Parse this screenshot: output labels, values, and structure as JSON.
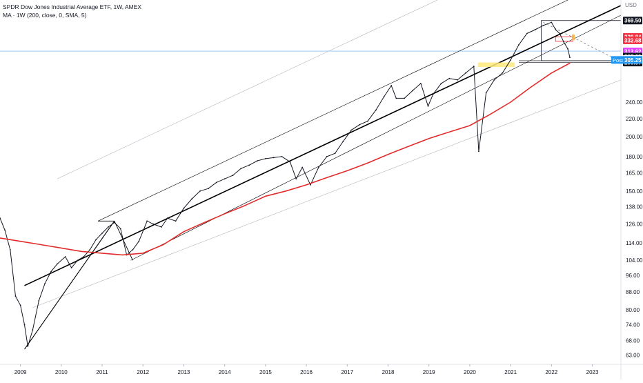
{
  "legend": {
    "symbol_line": "SPDR Dow Jones Industrial Average ETF, 1W, AMEX",
    "indicator_line": "MA · 1W (200, close, 0, SMA, 5)"
  },
  "chart_data": {
    "type": "line",
    "xlim": [
      2008.5,
      2023.7
    ],
    "ylim": [
      60,
      400
    ],
    "log_scale": true,
    "grid": false,
    "price_axis_unit": "USD",
    "y_ticks": [
      63,
      68,
      74,
      80,
      88,
      96,
      104,
      114,
      126,
      138,
      150,
      165,
      180,
      200,
      220,
      240,
      305.25,
      369.5
    ],
    "y_tick_labels": [
      "63.00",
      "68.00",
      "74.00",
      "80.00",
      "88.00",
      "96.00",
      "104.00",
      "114.00",
      "126.00",
      "138.00",
      "150.00",
      "165.00",
      "180.00",
      "200.00",
      "220.00",
      "240.00",
      "305.25",
      "369.50"
    ],
    "x_ticks": [
      2009.0,
      2010.0,
      2011.0,
      2012.0,
      2013.0,
      2014.0,
      2015.0,
      2016.0,
      2017.0,
      2018.0,
      2019.0,
      2020.0,
      2021.0,
      2022.0,
      2023.0
    ],
    "x_tick_labels": [
      "2009",
      "2010",
      "2011",
      "2012",
      "2013",
      "2014",
      "2015",
      "2016",
      "2017",
      "2018",
      "2019",
      "2020",
      "2021",
      "2022",
      "2023"
    ],
    "series": [
      {
        "color": "#131722",
        "x": [
          2008.5,
          2008.62,
          2008.75,
          2008.88,
          2009.0,
          2009.1,
          2009.18,
          2009.3,
          2009.45,
          2009.6,
          2009.75,
          2009.9,
          2010.1,
          2010.25,
          2010.4,
          2010.55,
          2010.7,
          2010.85,
          2011.0,
          2011.15,
          2011.3,
          2011.45,
          2011.6,
          2011.75,
          2011.9,
          2012.1,
          2012.25,
          2012.45,
          2012.6,
          2012.8,
          2013.0,
          2013.2,
          2013.4,
          2013.6,
          2013.8,
          2014.0,
          2014.2,
          2014.4,
          2014.6,
          2014.8,
          2015.0,
          2015.2,
          2015.4,
          2015.6,
          2015.75,
          2015.9,
          2016.1,
          2016.3,
          2016.5,
          2016.7,
          2016.9,
          2017.1,
          2017.3,
          2017.5,
          2017.7,
          2017.9,
          2018.08,
          2018.2,
          2018.4,
          2018.6,
          2018.8,
          2018.98,
          2019.1,
          2019.3,
          2019.5,
          2019.7,
          2019.9,
          2020.1,
          2020.22,
          2020.4,
          2020.6,
          2020.8,
          2021.0,
          2021.2,
          2021.4,
          2021.6,
          2021.8,
          2022.0,
          2022.1,
          2022.2,
          2022.3,
          2022.4,
          2022.45
        ],
        "y": [
          130,
          122,
          110,
          86,
          82,
          74,
          66,
          72,
          84,
          92,
          98,
          102,
          106,
          100,
          104,
          106,
          110,
          116,
          120,
          124,
          127,
          123,
          107,
          110,
          115,
          128,
          126,
          124,
          130,
          128,
          137,
          144,
          150,
          152,
          157,
          160,
          163,
          169,
          172,
          176,
          178,
          179,
          180,
          175,
          160,
          170,
          155,
          170,
          180,
          183,
          195,
          207,
          213,
          217,
          230,
          247,
          262,
          245,
          245,
          255,
          265,
          235,
          250,
          265,
          272,
          270,
          280,
          290,
          185,
          252,
          270,
          280,
          300,
          325,
          345,
          352,
          360,
          366,
          352,
          345,
          330,
          318,
          304
        ]
      },
      {
        "color": "#e32b2b",
        "x": [
          2008.5,
          2009.0,
          2009.5,
          2010.0,
          2010.5,
          2011.0,
          2011.5,
          2012.0,
          2012.5,
          2013.0,
          2013.5,
          2014.0,
          2014.5,
          2015.0,
          2015.5,
          2016.0,
          2016.5,
          2017.0,
          2017.5,
          2018.0,
          2018.5,
          2019.0,
          2019.5,
          2020.0,
          2020.5,
          2021.0,
          2021.5,
          2022.0,
          2022.45
        ],
        "y": [
          117,
          115,
          113,
          111,
          109,
          108,
          107,
          108,
          113,
          121,
          127,
          133,
          139,
          146,
          150,
          155,
          161,
          167,
          174,
          182,
          190,
          198,
          205,
          212,
          225,
          240,
          260,
          280,
          295
        ]
      }
    ],
    "price_labels": [
      {
        "value": 369.5,
        "label": "369.50",
        "bg": "#131722",
        "fg": "#ffffff"
      },
      {
        "value": 338.84,
        "label": "338.84",
        "bg": "#f23645",
        "fg": "#ffffff"
      },
      {
        "value": 332.68,
        "label": "332.68",
        "bg": "#f23645",
        "fg": "#ffffff"
      },
      {
        "value": 313.62,
        "label": "313.62",
        "bg": "#e040fb",
        "fg": "#ffffff"
      },
      {
        "value": 305.29,
        "label": "305.29",
        "bg": "#131722",
        "fg": "#ffffff"
      },
      {
        "value": 301.6,
        "label": "3d 0h",
        "bg": "#ffffff",
        "fg": "#131722"
      },
      {
        "value": 298.74,
        "label": "298.74",
        "bg": "#131722",
        "fg": "#ffffff"
      },
      {
        "value": 295.87,
        "label": "295.87",
        "bg": "#131722",
        "fg": "#ffffff"
      }
    ],
    "post_label": {
      "tag": "Post",
      "value": "305.25",
      "color": "#2196f3"
    }
  }
}
